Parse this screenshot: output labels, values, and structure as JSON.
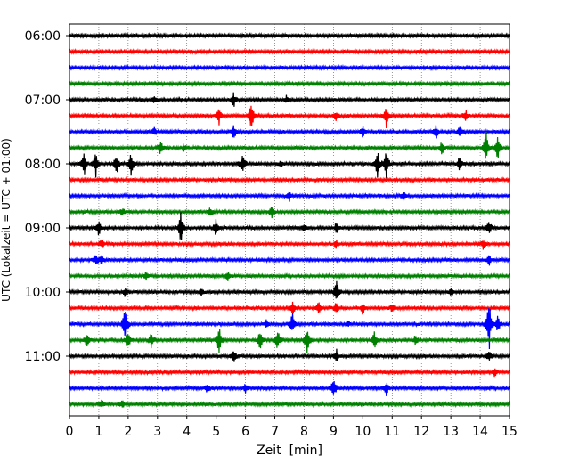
{
  "chart_data": {
    "type": "line",
    "title": "",
    "xlabel": "Zeit  [min]",
    "ylabel": "UTC (Lokalzeit = UTC + 01:00)",
    "xlim": [
      0,
      15
    ],
    "x_ticks": [
      "0",
      "1",
      "2",
      "3",
      "4",
      "5",
      "6",
      "7",
      "8",
      "9",
      "10",
      "11",
      "12",
      "13",
      "14",
      "15"
    ],
    "y_ticks": [
      "06:00",
      "07:00",
      "08:00",
      "09:00",
      "10:00",
      "11:00"
    ],
    "grid": "vertical dotted",
    "colors": [
      "#000000",
      "#ff0000",
      "#0000ff",
      "#008000"
    ],
    "traces": [
      {
        "time": "06:00",
        "color": "#000000",
        "events": []
      },
      {
        "time": "06:15",
        "color": "#ff0000",
        "events": []
      },
      {
        "time": "06:30",
        "color": "#0000ff",
        "events": []
      },
      {
        "time": "06:45",
        "color": "#008000",
        "events": []
      },
      {
        "time": "07:00",
        "color": "#000000",
        "events": [
          [
            5.6,
            0.5
          ],
          [
            2.9,
            0.3
          ],
          [
            7.4,
            0.3
          ]
        ]
      },
      {
        "time": "07:15",
        "color": "#ff0000",
        "events": [
          [
            5.1,
            0.6
          ],
          [
            6.2,
            1.0
          ],
          [
            10.8,
            0.8
          ],
          [
            9.1,
            0.4
          ],
          [
            13.5,
            0.4
          ]
        ]
      },
      {
        "time": "07:30",
        "color": "#0000ff",
        "events": [
          [
            5.6,
            0.5
          ],
          [
            10.0,
            0.4
          ],
          [
            12.5,
            0.6
          ],
          [
            13.3,
            0.4
          ],
          [
            2.9,
            0.3
          ]
        ]
      },
      {
        "time": "07:45",
        "color": "#008000",
        "events": [
          [
            3.1,
            0.6
          ],
          [
            12.7,
            0.5
          ],
          [
            14.2,
            1.2
          ],
          [
            14.6,
            1.0
          ],
          [
            3.9,
            0.3
          ]
        ]
      },
      {
        "time": "08:00",
        "color": "#000000",
        "events": [
          [
            0.5,
            0.9
          ],
          [
            0.9,
            0.9
          ],
          [
            1.6,
            0.8
          ],
          [
            2.1,
            0.9
          ],
          [
            5.9,
            0.7
          ],
          [
            10.5,
            1.0
          ],
          [
            10.8,
            1.0
          ],
          [
            13.3,
            0.6
          ],
          [
            7.2,
            0.3
          ]
        ]
      },
      {
        "time": "08:15",
        "color": "#ff0000",
        "events": []
      },
      {
        "time": "08:30",
        "color": "#0000ff",
        "events": [
          [
            7.5,
            0.3
          ],
          [
            11.4,
            0.3
          ]
        ]
      },
      {
        "time": "08:45",
        "color": "#008000",
        "events": [
          [
            6.9,
            0.6
          ],
          [
            4.8,
            0.3
          ],
          [
            1.8,
            0.3
          ]
        ]
      },
      {
        "time": "09:00",
        "color": "#000000",
        "events": [
          [
            1.0,
            0.6
          ],
          [
            3.8,
            1.2
          ],
          [
            5.0,
            0.7
          ],
          [
            14.3,
            0.6
          ],
          [
            9.1,
            0.4
          ],
          [
            8.0,
            0.3
          ]
        ]
      },
      {
        "time": "09:15",
        "color": "#ff0000",
        "events": [
          [
            1.1,
            0.4
          ],
          [
            9.1,
            0.3
          ],
          [
            14.1,
            0.4
          ]
        ]
      },
      {
        "time": "09:30",
        "color": "#0000ff",
        "events": [
          [
            0.9,
            0.4
          ],
          [
            1.1,
            0.3
          ],
          [
            14.3,
            0.4
          ]
        ]
      },
      {
        "time": "09:45",
        "color": "#008000",
        "events": [
          [
            5.4,
            0.4
          ],
          [
            2.6,
            0.3
          ]
        ]
      },
      {
        "time": "10:00",
        "color": "#000000",
        "events": [
          [
            9.1,
            1.0
          ],
          [
            1.9,
            0.4
          ],
          [
            4.5,
            0.3
          ],
          [
            13.0,
            0.3
          ]
        ]
      },
      {
        "time": "10:15",
        "color": "#ff0000",
        "events": [
          [
            7.6,
            0.5
          ],
          [
            8.5,
            0.5
          ],
          [
            9.1,
            0.5
          ],
          [
            10.0,
            0.5
          ],
          [
            11.0,
            0.3
          ]
        ]
      },
      {
        "time": "10:30",
        "color": "#0000ff",
        "events": [
          [
            1.9,
            1.6
          ],
          [
            7.6,
            0.8
          ],
          [
            6.7,
            0.3
          ],
          [
            9.5,
            0.3
          ],
          [
            14.3,
            2.2
          ],
          [
            14.6,
            0.6
          ]
        ]
      },
      {
        "time": "10:45",
        "color": "#008000",
        "events": [
          [
            0.6,
            0.6
          ],
          [
            2.0,
            0.6
          ],
          [
            2.8,
            0.6
          ],
          [
            5.1,
            1.1
          ],
          [
            6.5,
            0.8
          ],
          [
            7.1,
            0.8
          ],
          [
            8.1,
            1.1
          ],
          [
            10.4,
            0.7
          ],
          [
            11.8,
            0.4
          ]
        ]
      },
      {
        "time": "11:00",
        "color": "#000000",
        "events": [
          [
            5.6,
            0.6
          ],
          [
            9.1,
            0.5
          ],
          [
            14.3,
            0.4
          ]
        ]
      },
      {
        "time": "11:15",
        "color": "#ff0000",
        "events": [
          [
            14.5,
            0.3
          ]
        ]
      },
      {
        "time": "11:30",
        "color": "#0000ff",
        "events": [
          [
            4.7,
            0.4
          ],
          [
            9.0,
            0.8
          ],
          [
            10.8,
            0.5
          ],
          [
            6.0,
            0.3
          ]
        ]
      },
      {
        "time": "11:45",
        "color": "#008000",
        "events": [
          [
            1.1,
            0.3
          ],
          [
            1.8,
            0.3
          ]
        ]
      }
    ]
  }
}
